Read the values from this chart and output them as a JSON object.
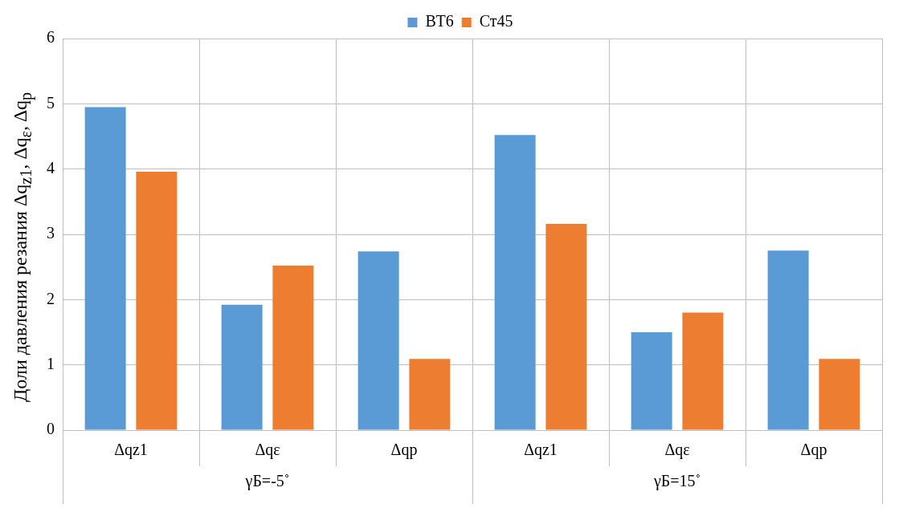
{
  "chart_data": {
    "type": "bar",
    "ylabel": "Доли давления резания Δq$_{z1}$, Δq$_{ε}$, Δq$_{p}$",
    "categories": [
      "Δqz1",
      "Δqε",
      "Δqp",
      "Δqz1",
      "Δqε",
      "Δqp"
    ],
    "series": [
      {
        "name": "ВТ6",
        "color": "#5b9bd5",
        "values": [
          4.95,
          1.92,
          2.74,
          4.52,
          1.5,
          2.75
        ]
      },
      {
        "name": "Ст45",
        "color": "#ed7d31",
        "values": [
          3.96,
          2.52,
          1.09,
          3.16,
          1.8,
          1.09
        ]
      }
    ],
    "ylim": [
      0,
      6
    ],
    "yticks": [
      0,
      1,
      2,
      3,
      4,
      5,
      6
    ],
    "grid": true,
    "legend": "top",
    "annotations": [
      "γБ=-5˚",
      "γБ=15˚"
    ]
  }
}
